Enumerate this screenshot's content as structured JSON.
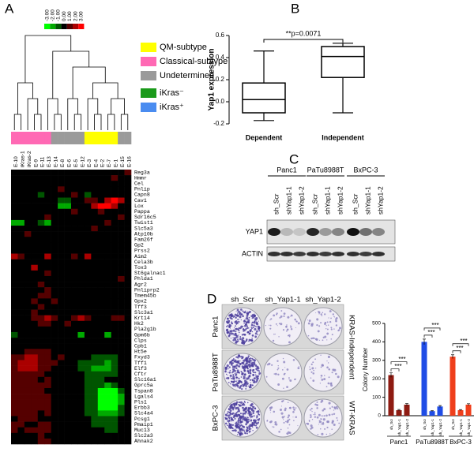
{
  "panel_labels": [
    "A",
    "B",
    "C",
    "D"
  ],
  "heatmap": {
    "type": "heatmap",
    "scale_ticks": [
      {
        "value": -3,
        "label": "-3.00"
      },
      {
        "value": -2,
        "label": "-2.00"
      },
      {
        "value": -1,
        "label": "-1.00"
      },
      {
        "value": 0,
        "label": "0.00"
      },
      {
        "value": 1,
        "label": "1.00"
      },
      {
        "value": 2,
        "label": "2.00"
      },
      {
        "value": 3,
        "label": "3.00"
      }
    ],
    "legend": [
      {
        "label": "QM-subtype",
        "color": "#ffff00"
      },
      {
        "label": "Classical-subtype",
        "color": "#ff69b4"
      },
      {
        "label": "Undetermined",
        "color": "#9a9a9a"
      },
      {
        "label": "iKras⁻",
        "color": "#1a9a1a"
      },
      {
        "label": "iKras⁺",
        "color": "#4a8cf0"
      }
    ],
    "samples": [
      {
        "name": "E-10",
        "label_color": "#2a5fd0",
        "subtype_color": "#ff69b4"
      },
      {
        "name": "iKras-1",
        "label_color": "#1a9a1a",
        "subtype_color": "#ff69b4"
      },
      {
        "name": "iKras-2",
        "label_color": "#1a9a1a",
        "subtype_color": "#ff69b4"
      },
      {
        "name": "E-9",
        "label_color": "#2a5fd0",
        "subtype_color": "#ff69b4"
      },
      {
        "name": "E-11",
        "label_color": "#2a5fd0",
        "subtype_color": "#ff69b4"
      },
      {
        "name": "E-13",
        "label_color": "#2a5fd0",
        "subtype_color": "#ff69b4"
      },
      {
        "name": "E-14",
        "label_color": "#2a5fd0",
        "subtype_color": "#9a9a9a"
      },
      {
        "name": "E-8",
        "label_color": "#2a5fd0",
        "subtype_color": "#9a9a9a"
      },
      {
        "name": "E-6",
        "label_color": "#2a5fd0",
        "subtype_color": "#9a9a9a"
      },
      {
        "name": "E-5",
        "label_color": "#2a5fd0",
        "subtype_color": "#9a9a9a"
      },
      {
        "name": "E-12",
        "label_color": "#2a5fd0",
        "subtype_color": "#9a9a9a"
      },
      {
        "name": "E-3",
        "label_color": "#2a5fd0",
        "subtype_color": "#ffff00"
      },
      {
        "name": "E-4",
        "label_color": "#2a5fd0",
        "subtype_color": "#ffff00"
      },
      {
        "name": "E-2",
        "label_color": "#2a5fd0",
        "subtype_color": "#ffff00"
      },
      {
        "name": "E-7",
        "label_color": "#2a5fd0",
        "subtype_color": "#ffff00"
      },
      {
        "name": "E-1",
        "label_color": "#2a5fd0",
        "subtype_color": "#ffff00"
      },
      {
        "name": "E-15",
        "label_color": "#2a5fd0",
        "subtype_color": "#9a9a9a"
      },
      {
        "name": "E-16",
        "label_color": "#2a5fd0",
        "subtype_color": "#9a9a9a"
      }
    ],
    "genes": [
      "Reg3a",
      "Hmmr",
      "Cel",
      "Pnlip",
      "Capn8",
      "Cav1",
      "Lox",
      "Pappa",
      "Sdr16c5",
      "Twist1",
      "Slc5a3",
      "Atp10b",
      "Fam26f",
      "Gp2",
      "Prss2",
      "Aim2",
      "Cela3b",
      "Tox3",
      "St6galnac1",
      "Phlda1",
      "Agr2",
      "Pnliprp2",
      "Tmem45b",
      "Gpx2",
      "Tff3",
      "Slc3a1",
      "Krt14",
      "Hk2",
      "Pla2g1b",
      "Gpm6b",
      "Clps",
      "Cpb1",
      "Ht5e",
      "Fxyd3",
      "Tff1",
      "Elf3",
      "Cftr",
      "Slc16a1",
      "Gprc5a",
      "Tspan8",
      "Lgals4",
      "Pls1",
      "Erbb3",
      "Slc4a4",
      "Pcsg1",
      "Pmaip1",
      "Muc13",
      "Slc2a3",
      "Ahnak2"
    ],
    "matrix": [
      [
        0,
        0,
        0,
        0,
        0,
        0,
        0,
        0,
        0,
        0,
        0,
        0,
        0,
        0,
        0,
        0,
        0,
        1
      ],
      [
        0,
        0,
        0,
        0,
        0,
        0,
        0,
        0,
        0,
        0,
        0,
        0,
        0,
        0,
        0,
        1,
        0,
        0
      ],
      [
        0,
        0,
        0,
        0,
        0,
        0,
        0,
        0,
        0,
        0,
        0,
        0,
        0,
        0,
        0,
        0,
        0,
        0
      ],
      [
        0,
        0,
        0,
        0,
        0,
        0,
        0,
        1,
        0,
        0,
        0,
        0,
        0,
        0,
        0,
        0,
        0,
        0
      ],
      [
        0,
        0,
        0,
        0,
        -1,
        0,
        0,
        0,
        0,
        1,
        0,
        -1,
        0,
        0,
        0,
        0,
        0,
        0
      ],
      [
        0,
        0,
        0,
        0,
        0,
        0,
        0,
        -1,
        -1,
        0,
        0,
        1,
        1,
        0,
        2,
        3,
        2,
        0
      ],
      [
        0,
        0,
        0,
        0,
        0,
        0,
        0,
        -2,
        -2,
        0,
        0,
        0,
        2,
        3,
        3,
        2,
        0,
        0
      ],
      [
        0,
        0,
        0,
        0,
        0,
        0,
        0,
        0,
        0,
        1,
        0,
        0,
        0,
        1,
        0,
        0,
        0,
        0
      ],
      [
        0,
        0,
        0,
        0,
        0,
        1,
        0,
        0,
        0,
        0,
        0,
        0,
        0,
        0,
        0,
        0,
        1,
        0
      ],
      [
        -2,
        -2,
        0,
        0,
        -1,
        -2,
        0,
        0,
        0,
        0,
        0,
        0,
        0,
        0,
        1,
        0,
        0,
        0
      ],
      [
        0,
        0,
        0,
        0,
        0,
        0,
        0,
        0,
        0,
        0,
        0,
        0,
        1,
        0,
        0,
        0,
        0,
        0
      ],
      [
        0,
        0,
        1,
        0,
        0,
        0,
        0,
        0,
        0,
        0,
        0,
        0,
        0,
        0,
        0,
        0,
        0,
        0
      ],
      [
        0,
        0,
        0,
        0,
        0,
        0,
        0,
        0,
        0,
        0,
        0,
        0,
        0,
        0,
        0,
        0,
        0,
        0
      ],
      [
        0,
        0,
        0,
        0,
        0,
        0,
        0,
        0,
        0,
        0,
        0,
        0,
        0,
        0,
        0,
        0,
        0,
        0
      ],
      [
        0,
        0,
        0,
        0,
        0,
        0,
        0,
        0,
        0,
        0,
        0,
        0,
        0,
        0,
        0,
        0,
        0,
        0
      ],
      [
        2,
        1,
        0,
        0,
        0,
        2,
        0,
        0,
        0,
        1,
        0,
        2,
        0,
        0,
        0,
        0,
        0,
        0
      ],
      [
        0,
        0,
        0,
        0,
        0,
        0,
        0,
        0,
        0,
        0,
        0,
        0,
        0,
        0,
        0,
        0,
        0,
        0
      ],
      [
        0,
        0,
        0,
        2,
        0,
        0,
        0,
        0,
        0,
        0,
        0,
        0,
        0,
        0,
        0,
        0,
        0,
        0
      ],
      [
        0,
        0,
        0,
        0,
        0,
        1,
        0,
        0,
        0,
        0,
        0,
        0,
        0,
        0,
        0,
        0,
        0,
        0
      ],
      [
        0,
        0,
        0,
        0,
        0,
        0,
        0,
        0,
        0,
        0,
        0,
        0,
        0,
        0,
        0,
        0,
        1,
        0
      ],
      [
        0,
        0,
        0,
        0,
        1,
        0,
        0,
        0,
        0,
        0,
        0,
        0,
        0,
        0,
        0,
        0,
        0,
        0
      ],
      [
        0,
        0,
        0,
        0,
        0,
        1,
        0,
        0,
        0,
        0,
        0,
        0,
        0,
        0,
        0,
        0,
        0,
        0
      ],
      [
        0,
        0,
        0,
        0,
        1,
        1,
        0,
        0,
        0,
        0,
        0,
        0,
        0,
        0,
        0,
        0,
        0,
        0
      ],
      [
        0,
        0,
        0,
        1,
        0,
        0,
        1,
        0,
        0,
        0,
        0,
        0,
        0,
        0,
        0,
        0,
        0,
        0
      ],
      [
        0,
        0,
        0,
        0,
        1,
        0,
        0,
        0,
        0,
        0,
        0,
        0,
        0,
        0,
        0,
        0,
        0,
        0
      ],
      [
        0,
        0,
        0,
        1,
        0,
        0,
        0,
        0,
        0,
        0,
        0,
        0,
        0,
        0,
        0,
        0,
        0,
        0
      ],
      [
        0,
        0,
        0,
        1,
        1,
        2,
        1,
        0,
        0,
        1,
        2,
        1,
        0,
        0,
        0,
        1,
        1,
        0
      ],
      [
        0,
        0,
        0,
        0,
        1,
        1,
        0,
        0,
        1,
        0,
        0,
        0,
        0,
        0,
        0,
        0,
        0,
        0
      ],
      [
        0,
        0,
        0,
        0,
        0,
        0,
        0,
        0,
        0,
        0,
        0,
        0,
        0,
        0,
        0,
        0,
        0,
        0
      ],
      [
        -1,
        0,
        0,
        0,
        0,
        0,
        0,
        0,
        0,
        0,
        -2,
        0,
        0,
        0,
        -2,
        0,
        0,
        0
      ],
      [
        0,
        0,
        0,
        0,
        0,
        0,
        0,
        0,
        0,
        0,
        0,
        0,
        0,
        0,
        0,
        0,
        0,
        0
      ],
      [
        0,
        0,
        0,
        0,
        0,
        0,
        0,
        0,
        0,
        0,
        0,
        0,
        0,
        0,
        0,
        0,
        0,
        0
      ],
      [
        0,
        0,
        1,
        1,
        1,
        1,
        0,
        0,
        0,
        0,
        0,
        0,
        0,
        0,
        0,
        0,
        0,
        0
      ],
      [
        1,
        1,
        2,
        2,
        1,
        1,
        0,
        1,
        0,
        0,
        0,
        0,
        -1,
        -1,
        -1,
        -1,
        0,
        0
      ],
      [
        1,
        2,
        2,
        2,
        1,
        1,
        1,
        0,
        0,
        0,
        -1,
        -1,
        -1,
        -1,
        -2,
        -1,
        0,
        0
      ],
      [
        1,
        2,
        2,
        2,
        1,
        1,
        0,
        0,
        0,
        0,
        -1,
        -1,
        -2,
        -2,
        -2,
        -1,
        0,
        0
      ],
      [
        1,
        1,
        1,
        1,
        1,
        0,
        0,
        0,
        0,
        0,
        0,
        -1,
        -1,
        -1,
        -1,
        -1,
        0,
        0
      ],
      [
        1,
        1,
        1,
        1,
        0,
        1,
        0,
        0,
        0,
        0,
        0,
        -1,
        -1,
        -1,
        0,
        0,
        0,
        0
      ],
      [
        1,
        1,
        1,
        1,
        1,
        1,
        0,
        0,
        0,
        0,
        0,
        -1,
        -1,
        -1,
        -2,
        -1,
        0,
        0
      ],
      [
        1,
        1,
        1,
        1,
        1,
        0,
        0,
        0,
        0,
        0,
        0,
        -1,
        -1,
        -3,
        -3,
        -3,
        -1,
        0
      ],
      [
        1,
        1,
        1,
        1,
        1,
        1,
        0,
        0,
        0,
        0,
        0,
        -1,
        -1,
        -3,
        -3,
        -3,
        -2,
        0
      ],
      [
        1,
        1,
        1,
        1,
        1,
        1,
        0,
        0,
        0,
        0,
        0,
        -1,
        -1,
        -3,
        -3,
        -3,
        -2,
        0
      ],
      [
        1,
        1,
        1,
        1,
        1,
        1,
        0,
        0,
        0,
        0,
        0,
        -1,
        -1,
        -3,
        -3,
        -3,
        -1,
        0
      ],
      [
        1,
        1,
        1,
        1,
        0,
        1,
        0,
        0,
        0,
        0,
        0,
        -1,
        -1,
        -2,
        -2,
        -2,
        -1,
        0
      ],
      [
        0,
        1,
        1,
        1,
        0,
        0,
        0,
        0,
        0,
        0,
        0,
        0,
        -1,
        -1,
        -1,
        -1,
        0,
        0
      ],
      [
        1,
        1,
        0,
        0,
        1,
        1,
        0,
        0,
        0,
        0,
        0,
        0,
        -1,
        -1,
        -1,
        -1,
        0,
        0
      ],
      [
        1,
        0,
        1,
        1,
        1,
        1,
        0,
        0,
        0,
        0,
        0,
        0,
        0,
        0,
        -1,
        -1,
        0,
        0
      ],
      [
        0,
        0,
        0,
        0,
        1,
        0,
        0,
        0,
        0,
        0,
        0,
        0,
        0,
        0,
        0,
        0,
        0,
        0
      ],
      [
        0,
        0,
        0,
        0,
        1,
        1,
        0,
        0,
        0,
        0,
        0,
        0,
        0,
        0,
        0,
        0,
        0,
        0
      ]
    ]
  },
  "chart_data": [
    {
      "type": "box",
      "ylabel": "Yap1 expression",
      "annotation": "**p=0.0071",
      "categories": [
        "Dependent",
        "Independent"
      ],
      "boxes": [
        {
          "min": -0.17,
          "q1": -0.1,
          "median": 0.02,
          "q3": 0.17,
          "max": 0.46
        },
        {
          "min": -0.1,
          "q1": 0.22,
          "median": 0.41,
          "q3": 0.5,
          "max": 0.53
        }
      ],
      "ylim": [
        -0.2,
        0.6
      ],
      "yticks": [
        -0.2,
        {
          "value": 0,
          "label": "0.0"
        },
        0.2,
        0.4,
        0.6
      ]
    },
    {
      "type": "bar",
      "ylabel": "Colony Number",
      "bar_labels": [
        "sh_Scr",
        "sh_Yap1-1",
        "sh_Yap1-2"
      ],
      "categories": [
        "Panc1",
        "PaTu8988T",
        "BxPC-3"
      ],
      "groups": [
        {
          "color": "#8e1b12",
          "values": [
            220,
            30,
            60
          ],
          "errors": [
            12,
            4,
            6
          ],
          "significance": [
            "***",
            "***"
          ]
        },
        {
          "color": "#1f4ce6",
          "values": [
            400,
            25,
            50
          ],
          "errors": [
            15,
            3,
            5
          ],
          "significance": [
            "***",
            "***"
          ]
        },
        {
          "color": "#ef3f1c",
          "values": [
            320,
            30,
            60
          ],
          "errors": [
            10,
            3,
            5
          ],
          "significance": [
            "***",
            "***"
          ]
        }
      ],
      "ylim": [
        0,
        500
      ],
      "yticks": [
        0,
        100,
        200,
        300,
        400,
        500
      ]
    }
  ],
  "blot": {
    "groups": [
      {
        "name": "Panc1",
        "lanes": [
          "sh_Scr",
          "shYap1-1",
          "shYap1-2"
        ]
      },
      {
        "name": "PaTu8988T",
        "lanes": [
          "sh_Scr",
          "shYap1-1",
          "shYap1-2"
        ]
      },
      {
        "name": "BxPC-3",
        "lanes": [
          "sh_Scr",
          "shYap1-1",
          "shYap1-2"
        ]
      }
    ],
    "rows": [
      "YAP1",
      "ACTIN"
    ]
  },
  "colony": {
    "columns": [
      "sh_Scr",
      "sh_Yap1-1",
      "sh_Yap1-2"
    ],
    "rows": [
      "Panc1",
      "PaTu8988T",
      "BxPC-3"
    ],
    "side_labels": [
      "KRAS-Independent",
      "WT-KRAS"
    ]
  }
}
